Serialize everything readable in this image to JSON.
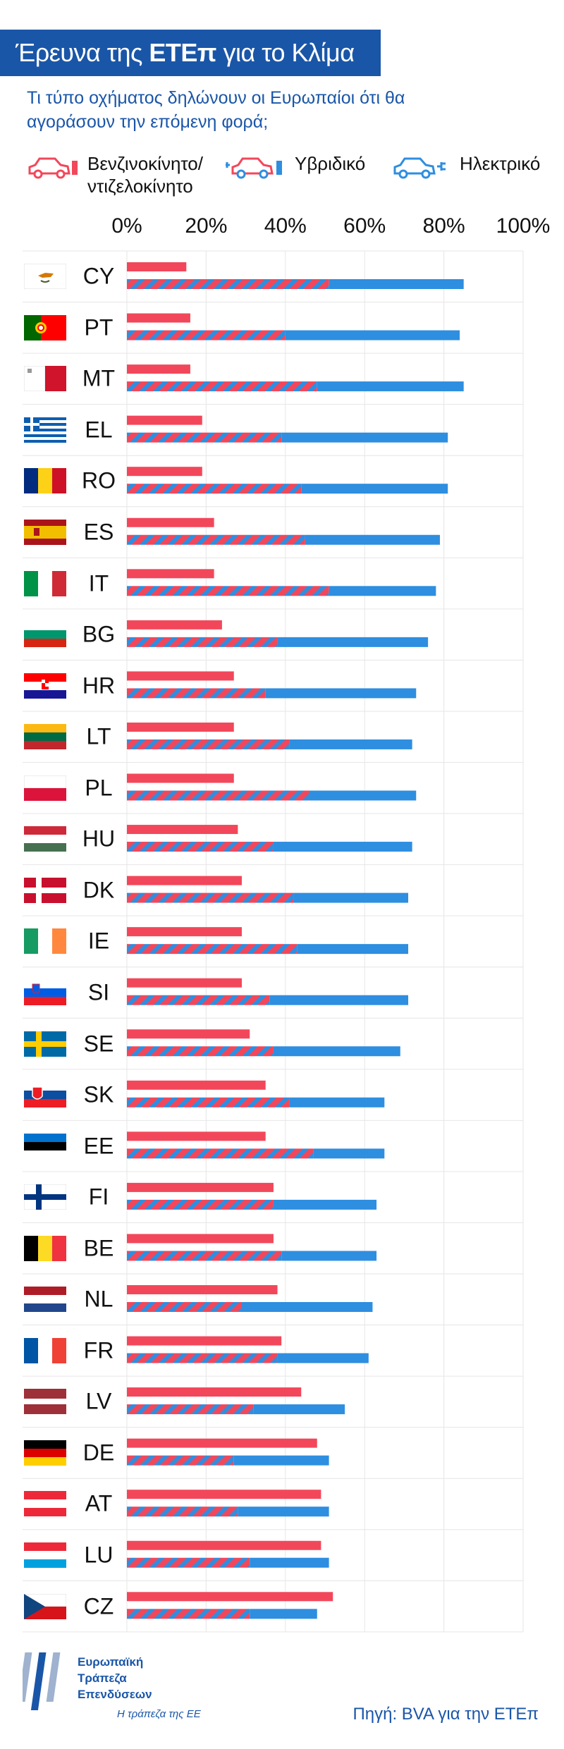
{
  "header": {
    "title_pre": "Έρευνα της ",
    "title_bold": "ΕΤΕπ",
    "title_post": " για το Κλίμα",
    "subtitle": "Τι τύπο οχήματος δηλώνουν οι Ευρωπαίοι ότι θα αγοράσουν την επόμενη φορά;"
  },
  "legend": {
    "petrol": "Βενζινοκίνητο/\nντιζελοκίνητο",
    "hybrid": "Υβριδικό",
    "electric": "Ηλεκτρικό"
  },
  "colors": {
    "petrol": "#f2475a",
    "electric": "#2e8ee0",
    "brand": "#1a56a8"
  },
  "chart_data": {
    "type": "bar",
    "orientation": "horizontal",
    "xlim": [
      0,
      100
    ],
    "tick_labels": [
      "0%",
      "20%",
      "40%",
      "60%",
      "80%",
      "100%"
    ],
    "categories": [
      "CY",
      "PT",
      "MT",
      "EL",
      "RO",
      "ES",
      "IT",
      "BG",
      "HR",
      "LT",
      "PL",
      "HU",
      "DK",
      "IE",
      "SI",
      "SE",
      "SK",
      "EE",
      "FI",
      "BE",
      "NL",
      "FR",
      "LV",
      "DE",
      "AT",
      "LU",
      "CZ"
    ],
    "series": [
      {
        "name": "Βενζινοκίνητο/ντιζελοκίνητο",
        "values": [
          15,
          16,
          16,
          19,
          19,
          22,
          22,
          24,
          27,
          27,
          27,
          28,
          29,
          29,
          29,
          31,
          35,
          35,
          37,
          37,
          38,
          39,
          44,
          48,
          49,
          49,
          52
        ]
      },
      {
        "name": "Υβριδικό",
        "values": [
          51,
          40,
          48,
          39,
          44,
          45,
          51,
          38,
          35,
          41,
          46,
          37,
          42,
          43,
          36,
          37,
          41,
          47,
          37,
          39,
          29,
          38,
          32,
          27,
          28,
          31,
          31
        ]
      },
      {
        "name": "Ηλεκτρικό",
        "values": [
          34,
          44,
          37,
          42,
          37,
          34,
          27,
          38,
          38,
          31,
          27,
          35,
          29,
          28,
          35,
          32,
          24,
          18,
          26,
          24,
          33,
          23,
          23,
          24,
          23,
          20,
          17
        ]
      }
    ]
  },
  "footer": {
    "logo_lines": [
      "Ευρωπαϊκή",
      "Τράπεζα",
      "Επενδύσεων"
    ],
    "tagline": "Η τράπεζα της ΕΕ",
    "source": "Πηγή: BVA για την ΕΤΕπ"
  }
}
